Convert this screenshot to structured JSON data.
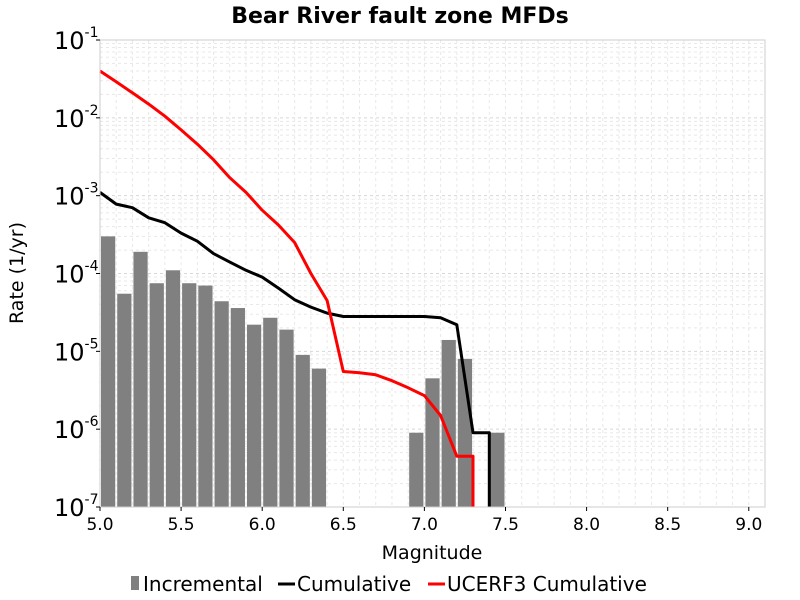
{
  "chart_data": {
    "type": "bar",
    "title": "Bear River fault zone MFDs",
    "xlabel": "Magnitude",
    "ylabel": "Rate (1/yr)",
    "xlim": [
      5.0,
      9.1
    ],
    "ylim": [
      1e-07,
      0.1
    ],
    "yscale": "log",
    "grid": true,
    "legend_position": "bottom",
    "x_ticks": [
      "5.0",
      "5.5",
      "6.0",
      "6.5",
      "7.0",
      "7.5",
      "8.0",
      "8.5",
      "9.0"
    ],
    "y_ticks": [
      {
        "value": 1e-07,
        "base": "10",
        "exp": "-7"
      },
      {
        "value": 1e-06,
        "base": "10",
        "exp": "-6"
      },
      {
        "value": 1e-05,
        "base": "10",
        "exp": "-5"
      },
      {
        "value": 0.0001,
        "base": "10",
        "exp": "-4"
      },
      {
        "value": 0.001,
        "base": "10",
        "exp": "-3"
      },
      {
        "value": 0.01,
        "base": "10",
        "exp": "-2"
      },
      {
        "value": 0.1,
        "base": "10",
        "exp": "-1"
      }
    ],
    "series": [
      {
        "name": "Incremental",
        "kind": "bar",
        "color": "#808080",
        "bin_width": 0.1,
        "x": [
          5.05,
          5.15,
          5.25,
          5.35,
          5.45,
          5.55,
          5.65,
          5.75,
          5.85,
          5.95,
          6.05,
          6.15,
          6.25,
          6.35,
          6.95,
          7.05,
          7.15,
          7.25,
          7.45
        ],
        "values": [
          0.0003,
          5.5e-05,
          0.00019,
          7.5e-05,
          0.00011,
          7.5e-05,
          7e-05,
          4.4e-05,
          3.6e-05,
          2.2e-05,
          2.7e-05,
          1.9e-05,
          9e-06,
          6e-06,
          9e-07,
          4.5e-06,
          1.4e-05,
          8e-06,
          9e-07
        ]
      },
      {
        "name": "Cumulative",
        "kind": "line",
        "color": "#000000",
        "x": [
          5.0,
          5.1,
          5.2,
          5.3,
          5.4,
          5.5,
          5.6,
          5.7,
          5.8,
          5.9,
          6.0,
          6.1,
          6.2,
          6.3,
          6.4,
          6.5,
          6.6,
          6.7,
          6.8,
          6.9,
          7.0,
          7.1,
          7.2,
          7.3,
          7.4,
          7.4
        ],
        "values": [
          0.0011,
          0.00078,
          0.0007,
          0.00052,
          0.00045,
          0.00033,
          0.00026,
          0.00018,
          0.00014,
          0.00011,
          9e-05,
          6.5e-05,
          4.6e-05,
          3.7e-05,
          3.1e-05,
          2.8e-05,
          2.8e-05,
          2.8e-05,
          2.8e-05,
          2.8e-05,
          2.8e-05,
          2.7e-05,
          2.2e-05,
          9e-07,
          9e-07,
          1e-07
        ]
      },
      {
        "name": "UCERF3 Cumulative",
        "kind": "line",
        "color": "#ff0000",
        "x": [
          5.0,
          5.1,
          5.2,
          5.3,
          5.4,
          5.5,
          5.6,
          5.7,
          5.8,
          5.9,
          6.0,
          6.1,
          6.2,
          6.3,
          6.4,
          6.5,
          6.6,
          6.7,
          6.8,
          6.9,
          7.0,
          7.1,
          7.2,
          7.3,
          7.3
        ],
        "values": [
          0.04,
          0.029,
          0.021,
          0.015,
          0.0105,
          0.007,
          0.0046,
          0.0029,
          0.0017,
          0.0011,
          0.00065,
          0.00042,
          0.00025,
          0.0001,
          4.5e-05,
          5.5e-06,
          5.3e-06,
          5e-06,
          4.2e-06,
          3.4e-06,
          2.7e-06,
          1.5e-06,
          4.5e-07,
          4.5e-07,
          1e-07
        ]
      }
    ]
  }
}
